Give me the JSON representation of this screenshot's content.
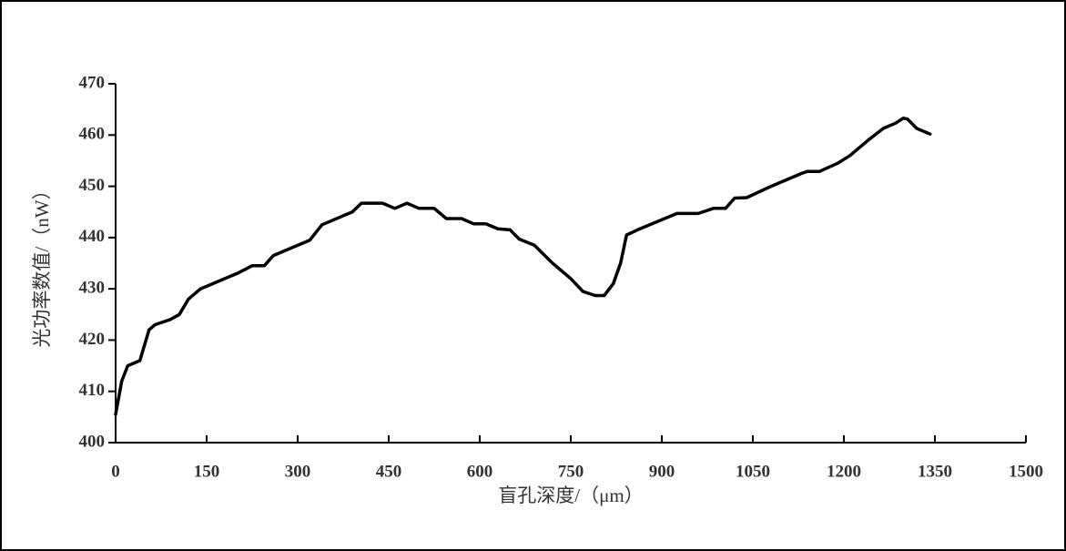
{
  "chart_data": {
    "type": "line",
    "xlabel": "盲孔深度/（μm）",
    "ylabel": "光功率数值/（nW）",
    "x": [
      0,
      10,
      20,
      40,
      55,
      65,
      90,
      105,
      120,
      140,
      160,
      200,
      225,
      245,
      260,
      290,
      320,
      340,
      370,
      390,
      405,
      440,
      460,
      480,
      500,
      525,
      545,
      570,
      590,
      610,
      630,
      650,
      665,
      690,
      720,
      750,
      770,
      790,
      805,
      820,
      832,
      842,
      860,
      900,
      925,
      960,
      985,
      1005,
      1020,
      1040,
      1080,
      1130,
      1140,
      1160,
      1190,
      1210,
      1240,
      1265,
      1285,
      1298,
      1305,
      1320,
      1342
    ],
    "series": [
      {
        "name": "光功率",
        "color": "#000000",
        "values": [
          405.5,
          412,
          415,
          416,
          422,
          423,
          424,
          425,
          428,
          430,
          431,
          433,
          434.5,
          434.5,
          436.5,
          438,
          439.5,
          442.5,
          444,
          445,
          446.7,
          446.7,
          445.7,
          446.7,
          445.7,
          445.7,
          443.7,
          443.7,
          442.7,
          442.7,
          441.7,
          441.5,
          439.7,
          438.5,
          435,
          432,
          429.5,
          428.7,
          428.7,
          431,
          435,
          440.5,
          441.5,
          443.5,
          444.7,
          444.7,
          445.7,
          445.7,
          447.7,
          447.8,
          450,
          452.5,
          452.9,
          452.9,
          454.5,
          456,
          459,
          461.3,
          462.3,
          463.3,
          463.1,
          461.3,
          460.2
        ]
      }
    ],
    "xlim": [
      0,
      1500
    ],
    "xticks": [
      0,
      150,
      300,
      450,
      600,
      750,
      900,
      1050,
      1200,
      1350,
      1500
    ],
    "ylim": [
      400,
      470
    ],
    "yticks": [
      400,
      410,
      420,
      430,
      440,
      450,
      460,
      470
    ]
  }
}
